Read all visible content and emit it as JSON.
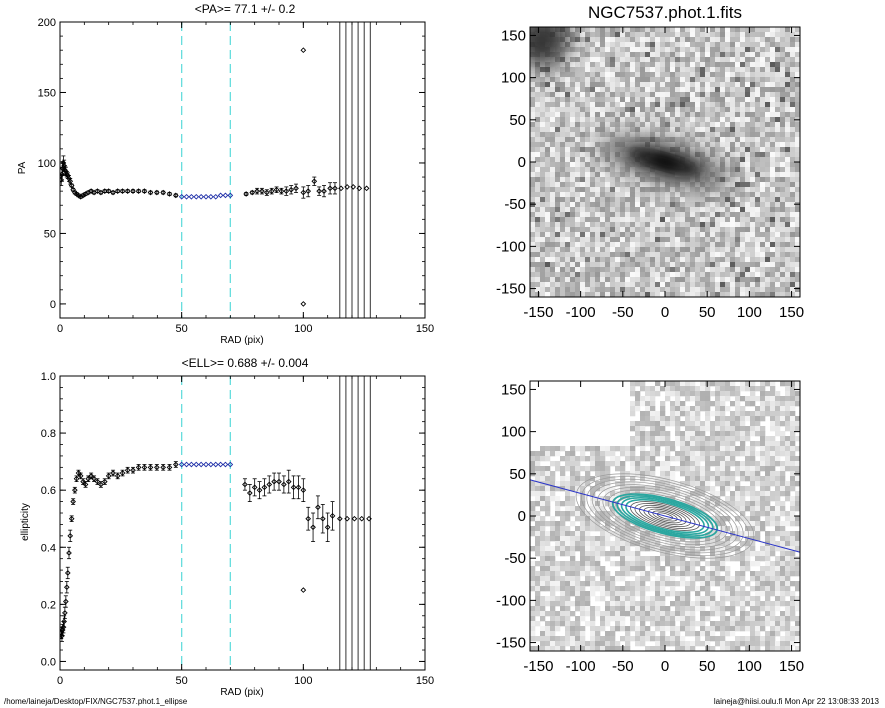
{
  "footer": {
    "path": "/home/laineja/Desktop/FIX/NGC7537.phot.1_ellipse",
    "user_date": "laineja@hiisi.oulu.fi  Mon Apr 22 13:08:33 2013"
  },
  "colors": {
    "highlight": "#1f2fa8",
    "guide": "#66dddd",
    "fit_line": "#2b35c8",
    "contour_fit": "#2aa7a0",
    "contour": "#9a9a9a"
  },
  "chart_data": [
    {
      "type": "scatter",
      "title": "<PA>=  77.1 +/-   0.2",
      "xlabel": "RAD (pix)",
      "ylabel": "PA",
      "xlim": [
        0,
        150
      ],
      "ylim": [
        -10,
        200
      ],
      "xticks": [
        "0",
        "50",
        "100",
        "150"
      ],
      "yticks": [
        "0",
        "50",
        "100",
        "150",
        "200"
      ],
      "grid": false,
      "vlines_dashed": [
        50,
        70
      ],
      "vlines_solid": [
        115,
        117.5,
        120,
        122.5,
        125,
        127.5
      ],
      "series": [
        {
          "x": [
            0.5,
            0.8,
            1.1,
            1.4,
            1.7,
            2.0,
            2.4,
            2.8,
            3.2,
            3.7,
            4.2,
            4.8,
            5.4,
            6.1,
            6.8,
            7.6,
            8.5,
            9.5,
            10.5,
            11.6,
            12.8,
            14.0,
            15.4,
            16.8,
            18.4,
            20.0,
            21.8,
            23.7,
            25.7,
            27.8,
            30.0,
            32.3,
            34.7,
            37.2,
            39.8,
            42.4,
            45.0,
            47.6,
            76.5,
            79.0,
            81.0,
            83.0,
            85.0,
            87.0,
            89.0,
            91.0,
            93.0,
            95.0,
            97.0,
            100.0,
            102.0,
            104.5,
            106.5,
            108.5,
            111.0,
            113.0,
            115.5,
            118.0,
            120.5,
            123.0,
            126.0,
            100.0,
            100.0
          ],
          "y": [
            88,
            92,
            96,
            100,
            98,
            95,
            94,
            92,
            91,
            89,
            87,
            84,
            81,
            79,
            78,
            77,
            76,
            77,
            78,
            79,
            80,
            79,
            80,
            79,
            80,
            80,
            79,
            80,
            80,
            80,
            80,
            80,
            80,
            79,
            79,
            79,
            78,
            77,
            78,
            79,
            80,
            80,
            79,
            80,
            81,
            80,
            80,
            81,
            82,
            79,
            80,
            87,
            80,
            80,
            82,
            82,
            82,
            83,
            83,
            82,
            82,
            180,
            0
          ],
          "error": [
            4,
            5,
            5,
            5,
            4,
            3,
            3,
            2,
            2,
            2,
            2,
            1,
            1,
            1,
            1,
            1,
            1,
            1,
            1,
            1,
            1,
            1,
            1,
            1,
            1,
            1,
            1,
            1,
            1,
            1,
            1,
            1,
            1,
            1,
            1,
            1,
            1,
            1,
            1,
            1,
            2,
            2,
            2,
            2,
            2,
            2,
            3,
            3,
            3,
            4,
            4,
            3,
            3,
            4,
            4,
            4,
            0,
            0,
            0,
            0,
            0,
            0,
            0
          ]
        },
        {
          "x": [
            50.0,
            52.0,
            54.0,
            56.0,
            58.0,
            60.0,
            62.0,
            64.0,
            66.0,
            68.0,
            70.0
          ],
          "y": [
            76,
            76,
            76,
            76,
            76,
            76,
            76,
            76,
            77,
            77,
            77
          ],
          "error": [
            0,
            0,
            0,
            0,
            0,
            0,
            0,
            0,
            0,
            0,
            0
          ]
        }
      ]
    },
    {
      "type": "scatter",
      "title": "<ELL>= 0.688 +/-  0.004",
      "xlabel": "RAD (pix)",
      "ylabel": "ellipticity",
      "xlim": [
        0,
        150
      ],
      "ylim": [
        -0.03,
        1.0
      ],
      "xticks": [
        "0",
        "50",
        "100",
        "150"
      ],
      "yticks": [
        "0.0",
        "0.2",
        "0.4",
        "0.6",
        "0.8",
        "1.0"
      ],
      "grid": false,
      "vlines_dashed": [
        50,
        70
      ],
      "vlines_solid": [
        115,
        117.5,
        120,
        122.5,
        125,
        127.5
      ],
      "series": [
        {
          "x": [
            0.5,
            0.8,
            1.1,
            1.4,
            1.7,
            2.0,
            2.4,
            2.8,
            3.2,
            3.7,
            4.2,
            4.8,
            5.4,
            6.1,
            6.8,
            7.6,
            8.5,
            9.5,
            10.5,
            11.6,
            12.8,
            14.0,
            15.4,
            16.8,
            18.4,
            20.0,
            21.8,
            23.7,
            25.7,
            27.8,
            30.0,
            32.3,
            34.7,
            37.2,
            39.8,
            42.4,
            45.0,
            47.6,
            76.0,
            78.0,
            80.0,
            82.0,
            84.0,
            86.0,
            88.0,
            90.0,
            92.0,
            94.0,
            96.0,
            98.0,
            100.0,
            102.0,
            104.0,
            106.0,
            108.0,
            110.0,
            112.0,
            115.0,
            118.0,
            121.0,
            124.0,
            127.0,
            100.0
          ],
          "y": [
            0.1,
            0.09,
            0.11,
            0.12,
            0.14,
            0.17,
            0.21,
            0.26,
            0.31,
            0.38,
            0.44,
            0.5,
            0.56,
            0.6,
            0.64,
            0.66,
            0.65,
            0.63,
            0.62,
            0.64,
            0.65,
            0.64,
            0.63,
            0.62,
            0.63,
            0.65,
            0.66,
            0.65,
            0.66,
            0.67,
            0.67,
            0.68,
            0.68,
            0.68,
            0.68,
            0.68,
            0.68,
            0.69,
            0.62,
            0.59,
            0.61,
            0.6,
            0.61,
            0.62,
            0.63,
            0.63,
            0.62,
            0.63,
            0.61,
            0.61,
            0.6,
            0.5,
            0.47,
            0.54,
            0.5,
            0.47,
            0.51,
            0.5,
            0.5,
            0.5,
            0.5,
            0.5,
            0.25
          ],
          "error": [
            0.02,
            0.02,
            0.02,
            0.02,
            0.02,
            0.02,
            0.02,
            0.02,
            0.02,
            0.02,
            0.02,
            0.01,
            0.01,
            0.01,
            0.01,
            0.01,
            0.01,
            0.01,
            0.01,
            0.01,
            0.01,
            0.01,
            0.01,
            0.01,
            0.01,
            0.01,
            0.01,
            0.01,
            0.01,
            0.01,
            0.01,
            0.01,
            0.01,
            0.01,
            0.01,
            0.01,
            0.01,
            0.01,
            0.02,
            0.03,
            0.03,
            0.03,
            0.03,
            0.03,
            0.03,
            0.03,
            0.03,
            0.04,
            0.04,
            0.04,
            0.04,
            0.04,
            0.05,
            0.04,
            0.05,
            0.05,
            0.05,
            0,
            0,
            0,
            0,
            0,
            0
          ]
        },
        {
          "x": [
            50.0,
            52.0,
            54.0,
            56.0,
            58.0,
            60.0,
            62.0,
            64.0,
            66.0,
            68.0,
            70.0
          ],
          "y": [
            0.69,
            0.69,
            0.69,
            0.69,
            0.69,
            0.69,
            0.69,
            0.69,
            0.69,
            0.69,
            0.69
          ],
          "error": [
            0,
            0,
            0,
            0,
            0,
            0,
            0,
            0,
            0,
            0,
            0
          ]
        }
      ]
    },
    {
      "type": "heatmap",
      "title": "NGC7537.phot.1.fits",
      "xlim": [
        -160,
        160
      ],
      "ylim": [
        -160,
        160
      ],
      "xticks": [
        "-150",
        "-100",
        "-50",
        "0",
        "50",
        "100",
        "150"
      ],
      "yticks": [
        "-150",
        "-100",
        "-50",
        "0",
        "50",
        "100",
        "150"
      ],
      "galaxy_center": [
        0,
        0
      ],
      "galaxy_pa_deg": 77.1,
      "galaxy_ell": 0.688
    },
    {
      "type": "heatmap",
      "title": "",
      "xlim": [
        -160,
        160
      ],
      "ylim": [
        -160,
        160
      ],
      "xticks": [
        "-150",
        "-100",
        "-50",
        "0",
        "50",
        "100",
        "150"
      ],
      "yticks": [
        "-150",
        "-100",
        "-50",
        "0",
        "50",
        "100",
        "150"
      ],
      "isophotes": "elliptical contours with fitted ellipses and major-axis line",
      "major_axis_pa_deg": 77.1
    }
  ]
}
